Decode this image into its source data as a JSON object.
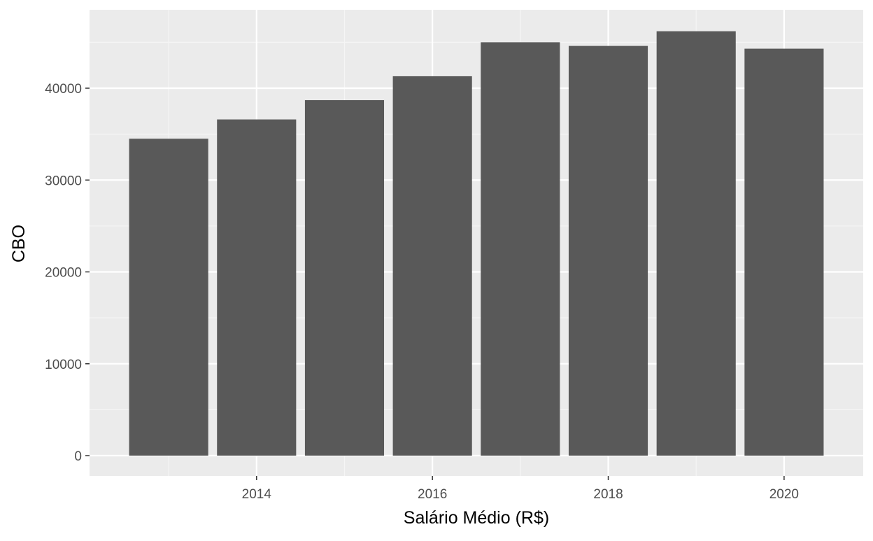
{
  "chart_data": {
    "type": "bar",
    "title": "",
    "xlabel": "Salário Médio (R$)",
    "ylabel": "CBO",
    "categories": [
      2013,
      2014,
      2015,
      2016,
      2017,
      2018,
      2019,
      2020
    ],
    "values": [
      34500,
      36600,
      38700,
      41300,
      45000,
      44600,
      46200,
      44300
    ],
    "x_ticks": [
      2014,
      2016,
      2018,
      2020
    ],
    "x_tick_labels": [
      "2014",
      "2016",
      "2018",
      "2020"
    ],
    "y_ticks": [
      0,
      10000,
      20000,
      30000,
      40000
    ],
    "y_tick_labels": [
      "0",
      "10000",
      "20000",
      "30000",
      "40000"
    ],
    "xlim": [
      2012.5,
      2020.5
    ],
    "ylim": [
      0,
      45000
    ],
    "grid": true,
    "legend": "none",
    "colors": {
      "bar": "#595959",
      "panel_background": "#ebebeb",
      "grid_major": "#ffffff",
      "grid_minor": "#f5f5f5",
      "tick_label": "#4d4d4d",
      "axis_title": "#000000"
    }
  }
}
